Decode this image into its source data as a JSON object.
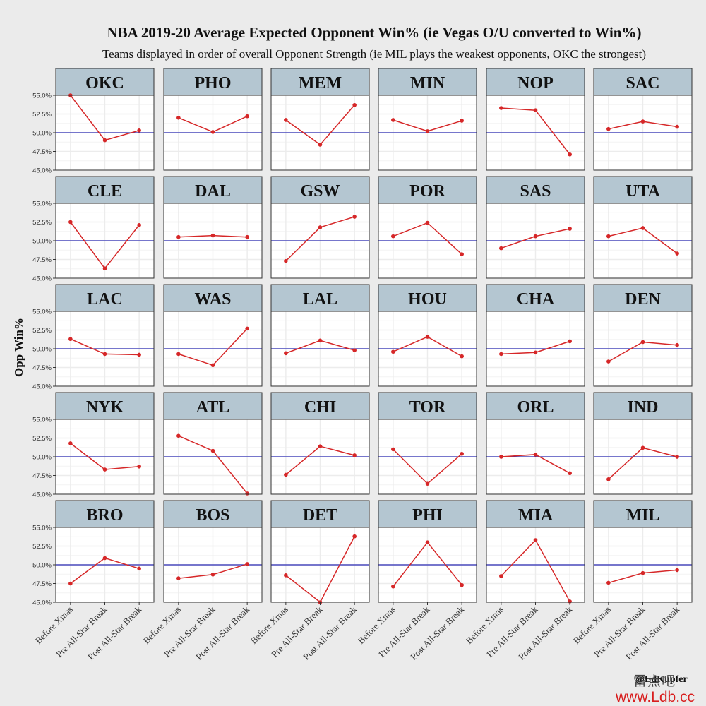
{
  "credit": "@EdKupfer",
  "watermark": {
    "chinese": "雷点吧",
    "url": "www.Ldb.cc"
  },
  "colors": {
    "background": "#ebebeb",
    "panel": "#ffffff",
    "strip": "#b4c6d1",
    "grid": "#ececec",
    "line": "#d62728",
    "reference": "#2a2ab5"
  },
  "chart_data": {
    "type": "line",
    "title": "NBA 2019-20 Average Expected Opponent Win% (ie Vegas O/U converted to Win%)",
    "subtitle": "Teams displayed in order of overall Opponent Strength (ie MIL plays the weakest opponents, OKC the strongest)",
    "xlabel": "",
    "ylabel": "Opp Win%",
    "categories": [
      "Before Xmas",
      "Pre All-Star Break",
      "Post All-Star Break"
    ],
    "ylim": [
      45,
      55
    ],
    "yticks": [
      45,
      47.5,
      50,
      52.5,
      55
    ],
    "ytick_labels": [
      "45.0%",
      "47.5%",
      "50.0%",
      "52.5%",
      "55.0%"
    ],
    "reference_line": 50,
    "grid": true,
    "layout": "facet 6 columns x 5 rows",
    "series": [
      {
        "name": "OKC",
        "values": [
          55.0,
          49.0,
          50.3
        ]
      },
      {
        "name": "PHO",
        "values": [
          52.0,
          50.1,
          52.2
        ]
      },
      {
        "name": "MEM",
        "values": [
          51.7,
          48.4,
          53.7
        ]
      },
      {
        "name": "MIN",
        "values": [
          51.7,
          50.2,
          51.6
        ]
      },
      {
        "name": "NOP",
        "values": [
          53.3,
          53.0,
          47.1
        ]
      },
      {
        "name": "SAC",
        "values": [
          50.5,
          51.5,
          50.8
        ]
      },
      {
        "name": "CLE",
        "values": [
          52.5,
          46.3,
          52.1
        ]
      },
      {
        "name": "DAL",
        "values": [
          50.5,
          50.7,
          50.5
        ]
      },
      {
        "name": "GSW",
        "values": [
          47.3,
          51.8,
          53.2
        ]
      },
      {
        "name": "POR",
        "values": [
          50.6,
          52.4,
          48.2
        ]
      },
      {
        "name": "SAS",
        "values": [
          49.0,
          50.6,
          51.6
        ]
      },
      {
        "name": "UTA",
        "values": [
          50.6,
          51.7,
          48.3
        ]
      },
      {
        "name": "LAC",
        "values": [
          51.3,
          49.3,
          49.2
        ]
      },
      {
        "name": "WAS",
        "values": [
          49.3,
          47.8,
          52.7
        ]
      },
      {
        "name": "LAL",
        "values": [
          49.4,
          51.1,
          49.8
        ]
      },
      {
        "name": "HOU",
        "values": [
          49.6,
          51.6,
          49.0
        ]
      },
      {
        "name": "CHA",
        "values": [
          49.3,
          49.5,
          51.0
        ]
      },
      {
        "name": "DEN",
        "values": [
          48.3,
          50.9,
          50.5
        ]
      },
      {
        "name": "NYK",
        "values": [
          51.8,
          48.3,
          48.7
        ]
      },
      {
        "name": "ATL",
        "values": [
          52.8,
          50.8,
          45.1
        ]
      },
      {
        "name": "CHI",
        "values": [
          47.6,
          51.4,
          50.2
        ]
      },
      {
        "name": "TOR",
        "values": [
          51.0,
          46.4,
          50.4
        ]
      },
      {
        "name": "ORL",
        "values": [
          50.0,
          50.3,
          47.8
        ]
      },
      {
        "name": "IND",
        "values": [
          47.0,
          51.2,
          50.0
        ]
      },
      {
        "name": "BRO",
        "values": [
          47.5,
          50.9,
          49.5
        ]
      },
      {
        "name": "BOS",
        "values": [
          48.2,
          48.7,
          50.1
        ]
      },
      {
        "name": "DET",
        "values": [
          48.6,
          45.0,
          53.8
        ]
      },
      {
        "name": "PHI",
        "values": [
          47.1,
          53.0,
          47.3
        ]
      },
      {
        "name": "MIA",
        "values": [
          48.5,
          53.3,
          45.1
        ]
      },
      {
        "name": "MIL",
        "values": [
          47.6,
          48.9,
          49.3
        ]
      }
    ]
  }
}
